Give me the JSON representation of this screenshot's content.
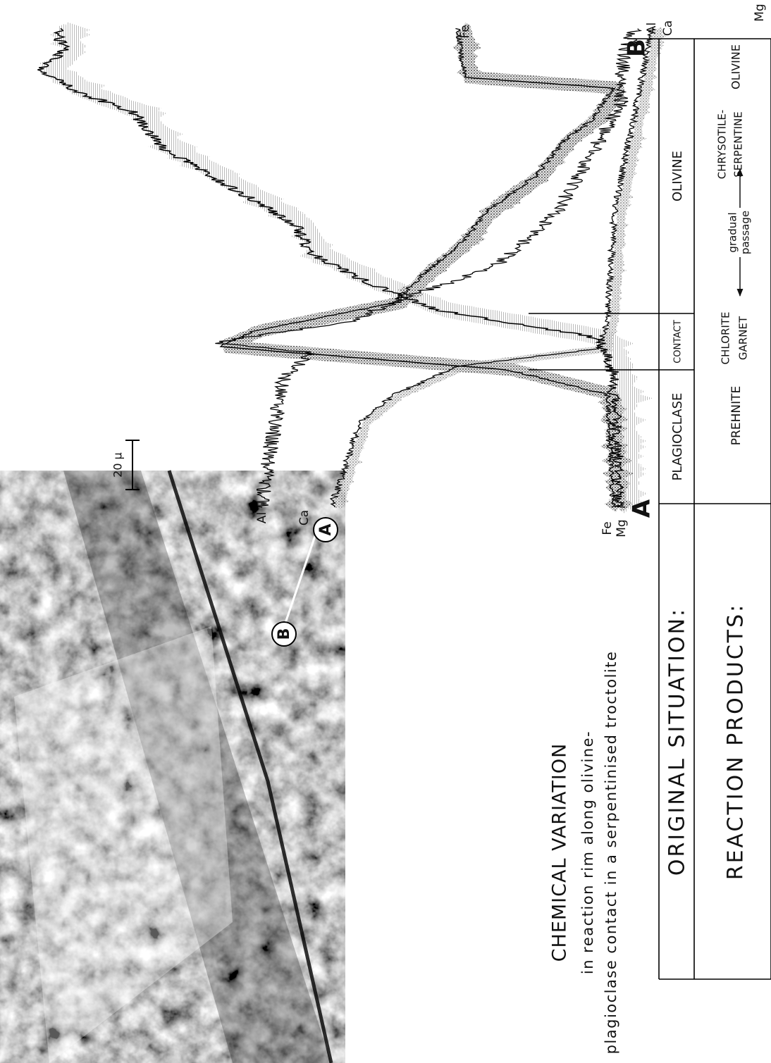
{
  "caption": {
    "title": "CHEMICAL VARIATION",
    "lines": [
      "in reaction rim along olivine-",
      "plagioclase contact in a serpentinised troctolite"
    ]
  },
  "photo": {
    "points": [
      "A",
      "B"
    ]
  },
  "profile": {
    "scale": "20 μ",
    "start": "A",
    "end": "B",
    "labels_start": [
      "Al",
      "Ca",
      "Fe",
      "Mg"
    ],
    "labels_end": [
      "Mg",
      "Fe",
      "Al",
      "Ca"
    ]
  },
  "table": {
    "row_headers": [
      "ORIGINAL SITUATION:",
      "REACTION PRODUCTS:"
    ],
    "original": [
      "PLAGIOCLASE",
      "CONTACT",
      "OLIVINE"
    ],
    "products": [
      "PREHNITE",
      [
        "CHLORITE",
        "GARNET"
      ],
      [
        "gradual",
        "passage"
      ],
      [
        "CHRYSOTILE-",
        "SERPENTINE"
      ],
      "OLIVINE"
    ]
  }
}
